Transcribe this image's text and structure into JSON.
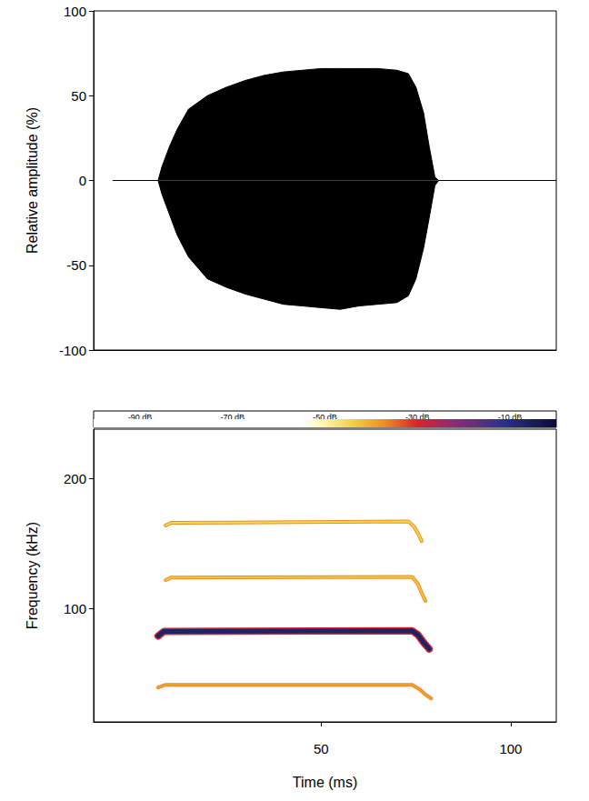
{
  "chart_data": [
    {
      "type": "area",
      "ylabel": "Relative amplitude (%)",
      "x": [
        -5,
        7,
        8,
        10,
        12,
        15,
        20,
        25,
        30,
        35,
        40,
        45,
        50,
        55,
        60,
        65,
        70,
        73,
        75,
        77,
        78.5,
        80,
        81,
        112
      ],
      "series": [
        {
          "color": "#000000",
          "values": [
            0,
            0,
            8,
            20,
            30,
            42,
            50,
            55,
            59,
            62,
            64,
            65,
            66,
            66,
            66,
            66,
            65,
            63,
            55,
            40,
            20,
            2,
            0,
            0
          ]
        },
        {
          "color": "#000000",
          "values": [
            0,
            0,
            -8,
            -20,
            -32,
            -45,
            -58,
            -63,
            -67,
            -70,
            -73,
            -74,
            -75,
            -76,
            -74,
            -73,
            -72,
            -68,
            -58,
            -40,
            -22,
            -3,
            0,
            0
          ]
        }
      ],
      "xlim": [
        -10,
        112
      ],
      "ylim": [
        -100,
        100
      ],
      "yticks": [
        -100,
        -50,
        0,
        50,
        100
      ],
      "tick_labels": "y",
      "grid": false
    },
    {
      "type": "line",
      "xlabel": "Time (ms)",
      "ylabel": "Frequency (kHz)",
      "series": [
        {
          "color": "#f6d848",
          "x": [
            9,
            10.5,
            73,
            74.5,
            75.5,
            76.5
          ],
          "values": [
            164,
            166,
            167,
            163,
            158,
            152
          ]
        },
        {
          "color": "#f3c53a",
          "x": [
            9,
            10.5,
            74,
            75.5,
            76.5,
            77.5
          ],
          "values": [
            122,
            124,
            124.5,
            119,
            112,
            106
          ]
        },
        {
          "color": "#1b2466",
          "x": [
            7,
            8.5,
            74,
            75.5,
            77,
            78.5
          ],
          "values": [
            79,
            82.5,
            83,
            80,
            74,
            69
          ]
        },
        {
          "color": "#f0a030",
          "x": [
            7,
            9,
            74,
            76,
            77.5,
            79
          ],
          "values": [
            39.5,
            41.5,
            41.5,
            38,
            34,
            31
          ]
        }
      ],
      "xlim": [
        -10,
        112
      ],
      "xticks": [
        50,
        100
      ],
      "ylim": [
        13,
        238
      ],
      "yticks": [
        100,
        200
      ],
      "grid": false,
      "colorbar": {
        "range": [
          -100,
          0
        ],
        "ticks": [
          {
            "value": -90,
            "label": "-90,dB"
          },
          {
            "value": -70,
            "label": "-70,dB"
          },
          {
            "value": -50,
            "label": "-50,dB"
          },
          {
            "value": -30,
            "label": "-30,dB"
          },
          {
            "value": -10,
            "label": "-10,dB"
          }
        ]
      }
    }
  ]
}
